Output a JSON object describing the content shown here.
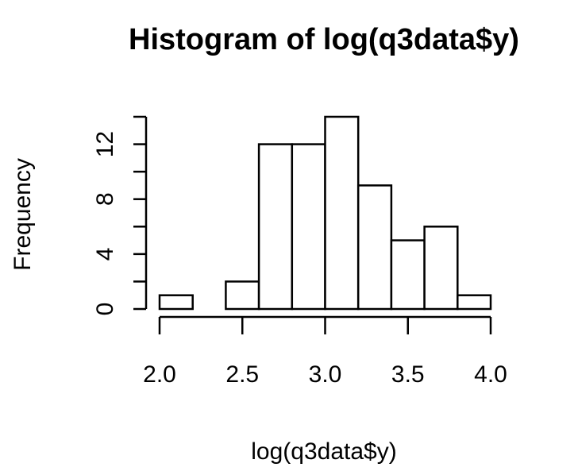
{
  "chart_data": {
    "type": "histogram",
    "title": "Histogram of log(q3data$y)",
    "xlabel": "log(q3data$y)",
    "ylabel": "Frequency",
    "bin_edges": [
      2.0,
      2.2,
      2.4,
      2.6,
      2.8,
      3.0,
      3.2,
      3.4,
      3.6,
      3.8,
      4.0
    ],
    "counts": [
      1,
      0,
      2,
      12,
      12,
      14,
      9,
      5,
      6,
      1
    ],
    "xlim": [
      2.0,
      4.0
    ],
    "ylim": [
      0,
      14
    ],
    "x_ticks": [
      "2.0",
      "2.5",
      "3.0",
      "3.5",
      "4.0"
    ],
    "y_ticks": [
      "0",
      "4",
      "8",
      "12"
    ],
    "grid": false,
    "colors": {
      "bar_fill": "#ffffff",
      "bar_stroke": "#000000",
      "axis": "#000000"
    }
  }
}
